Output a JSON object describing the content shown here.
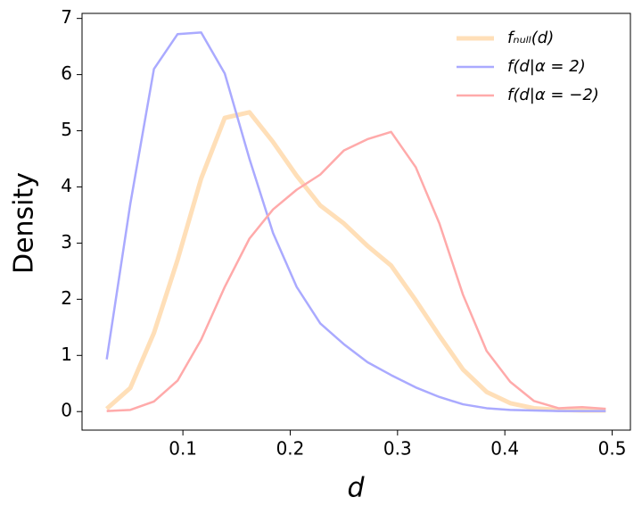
{
  "chart_data": {
    "type": "line",
    "xlabel": "d",
    "ylabel": "Density",
    "x": [
      0.029,
      0.051,
      0.073,
      0.095,
      0.117,
      0.139,
      0.162,
      0.184,
      0.206,
      0.228,
      0.25,
      0.272,
      0.294,
      0.317,
      0.339,
      0.361,
      0.383,
      0.405,
      0.427,
      0.45,
      0.472,
      0.494
    ],
    "series": [
      {
        "name": "fₙᵤₗₗ(d)",
        "color": "#ffdfb8",
        "width": 5,
        "values": [
          0.05,
          0.42,
          1.4,
          2.7,
          4.15,
          5.23,
          5.33,
          4.8,
          4.2,
          3.67,
          3.35,
          2.95,
          2.6,
          1.98,
          1.35,
          0.75,
          0.35,
          0.15,
          0.06,
          0.03,
          0.02,
          0.02
        ]
      },
      {
        "name": "f(d|α = 2)",
        "color": "#aaaaff",
        "width": 2.5,
        "values": [
          0.93,
          3.7,
          6.1,
          6.72,
          6.75,
          6.02,
          4.5,
          3.18,
          2.22,
          1.57,
          1.2,
          0.88,
          0.65,
          0.43,
          0.26,
          0.13,
          0.06,
          0.03,
          0.02,
          0.01,
          0.01,
          0.01
        ]
      },
      {
        "name": "f(d|α = −2)",
        "color": "#ffaaaa",
        "width": 2.5,
        "values": [
          0.01,
          0.03,
          0.18,
          0.55,
          1.28,
          2.22,
          3.08,
          3.6,
          3.95,
          4.22,
          4.65,
          4.85,
          4.98,
          4.35,
          3.35,
          2.08,
          1.08,
          0.53,
          0.19,
          0.06,
          0.08,
          0.05
        ]
      }
    ],
    "xlim": [
      0.006,
      0.517
    ],
    "ylim": [
      -0.33,
      7.09
    ],
    "xticks": [
      0.1,
      0.2,
      0.3,
      0.4,
      0.5
    ],
    "yticks": [
      0,
      1,
      2,
      3,
      4,
      5,
      6,
      7
    ],
    "grid": false,
    "legend": "upper right"
  }
}
